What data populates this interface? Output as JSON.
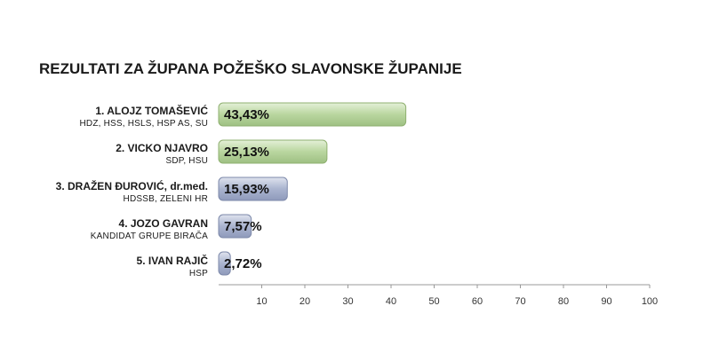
{
  "chart_data": {
    "type": "bar",
    "orientation": "horizontal",
    "title": "REZULTATI ZA ŽUPANA POŽEŠKO SLAVONSKE ŽUPANIJE",
    "categories": [
      {
        "name": "1. ALOJZ TOMAŠEVIĆ",
        "party": "HDZ, HSS, HSLS, HSP AS, SU"
      },
      {
        "name": "2. VICKO NJAVRO",
        "party": "SDP, HSU"
      },
      {
        "name": "3. DRAŽEN ĐUROVIĆ, dr.med.",
        "party": "HDSSB, ZELENI HR"
      },
      {
        "name": "4. JOZO GAVRAN",
        "party": "KANDIDAT GRUPE BIRAČA"
      },
      {
        "name": "5. IVAN RAJIČ",
        "party": "HSP"
      }
    ],
    "values": [
      43.43,
      25.13,
      15.93,
      7.57,
      2.72
    ],
    "value_labels": [
      "43,43%",
      "25,13%",
      "15,93%",
      "7,57%",
      "2,72%"
    ],
    "bar_colors": [
      "#b5d49a",
      "#b5d49a",
      "#a9b3cf",
      "#a9b3cf",
      "#a9b3cf"
    ],
    "xlim": [
      0,
      100
    ],
    "xticks": [
      10,
      20,
      30,
      40,
      50,
      60,
      70,
      80,
      90,
      100
    ],
    "grid": false,
    "legend": "none"
  }
}
